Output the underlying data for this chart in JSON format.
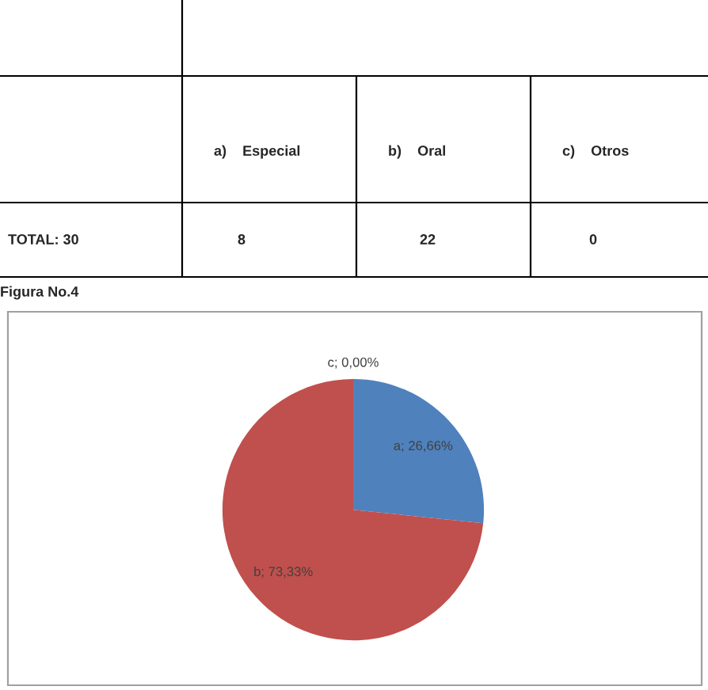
{
  "chart_data": {
    "type": "pie",
    "categories": [
      "a",
      "b",
      "c"
    ],
    "values": [
      26.66,
      73.33,
      0
    ],
    "value_labels": [
      "; 26,66%",
      "; 73,33%",
      "; 0,00%"
    ],
    "colors": [
      "#4f81bd",
      "#c0504d",
      "#9bbb59"
    ],
    "annotations": [
      "a)    Especial",
      "b)    Oral",
      "c)    Otros",
      "TOTAL: 30",
      "8",
      "22",
      "0",
      "Figura No.4"
    ]
  }
}
